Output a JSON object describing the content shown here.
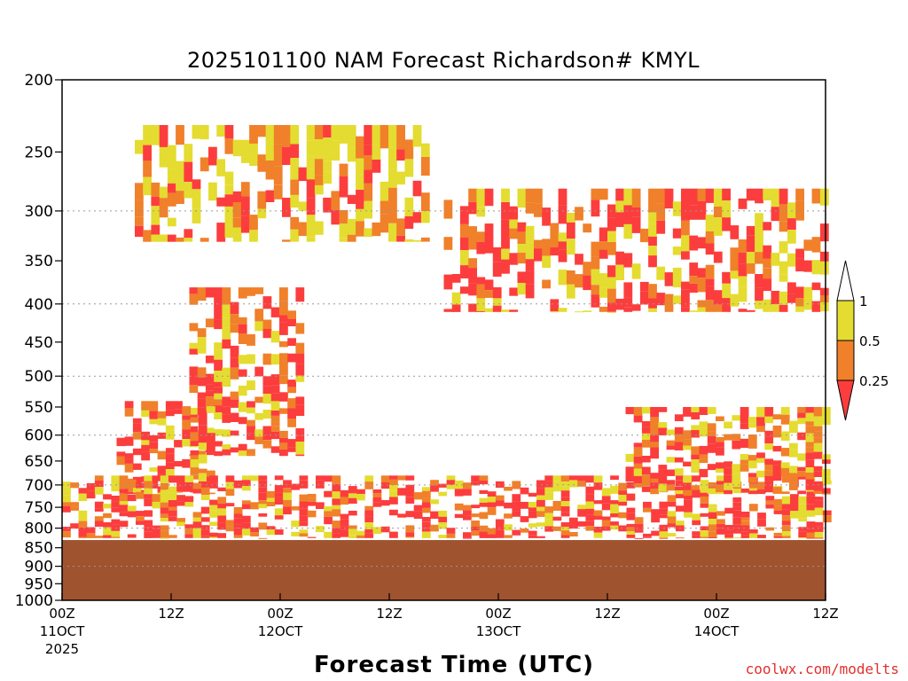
{
  "chart_data": {
    "type": "heatmap",
    "title": "2025101100 NAM Forecast Richardson# KMYL",
    "xlabel": "Forecast Time (UTC)",
    "ylabel": "",
    "y_scale": "log",
    "ylim": [
      1000,
      200
    ],
    "y_ticks": [
      200,
      250,
      300,
      350,
      400,
      450,
      500,
      550,
      600,
      650,
      700,
      750,
      800,
      850,
      900,
      950,
      1000
    ],
    "gridlines_hPa": [
      300,
      400,
      500,
      600,
      700,
      800,
      900,
      1000
    ],
    "x_ticks": [
      {
        "hour": 0,
        "label": "00Z",
        "date": "11OCT",
        "year": "2025"
      },
      {
        "hour": 12,
        "label": "12Z",
        "date": "",
        "year": ""
      },
      {
        "hour": 24,
        "label": "00Z",
        "date": "12OCT",
        "year": ""
      },
      {
        "hour": 36,
        "label": "12Z",
        "date": "",
        "year": ""
      },
      {
        "hour": 48,
        "label": "00Z",
        "date": "13OCT",
        "year": ""
      },
      {
        "hour": 60,
        "label": "12Z",
        "date": "",
        "year": ""
      },
      {
        "hour": 72,
        "label": "00Z",
        "date": "14OCT",
        "year": ""
      },
      {
        "hour": 84,
        "label": "12Z",
        "date": "",
        "year": ""
      }
    ],
    "xlim_hours": [
      0,
      84
    ],
    "ground_top_hPa": 830,
    "legend": {
      "placement": "right",
      "labels": [
        "1",
        "0.5",
        "0.25"
      ],
      "colors": {
        "lt_0_25": "#fc3d3d",
        "0_25_to_0_5": "#f0802a",
        "0_5_to_1": "#e4dc30",
        "gt_1": "#ffffff",
        "ground": "#9f532f"
      }
    },
    "bands": [
      {
        "desc": "upper jet-level low Ri",
        "start_hour": 42,
        "end_hour": 84,
        "top_hPa": 280,
        "bottom_hPa": 410,
        "class_weights": [
          0.5,
          0.25,
          0.25
        ]
      },
      {
        "desc": "mid-level frontal layer",
        "start_hour": 14,
        "end_hour": 26,
        "top_hPa": 380,
        "bottom_hPa": 640,
        "class_weights": [
          0.45,
          0.3,
          0.25
        ]
      },
      {
        "desc": "early mid-level layer",
        "start_hour": 6,
        "end_hour": 16,
        "top_hPa": 540,
        "bottom_hPa": 720,
        "class_weights": [
          0.55,
          0.25,
          0.2
        ]
      },
      {
        "desc": "boundary layer",
        "start_hour": 0,
        "end_hour": 84,
        "top_hPa": 680,
        "bottom_hPa": 825,
        "class_weights": [
          0.55,
          0.25,
          0.2
        ]
      },
      {
        "desc": "late mid-level layer",
        "start_hour": 62,
        "end_hour": 84,
        "top_hPa": 550,
        "bottom_hPa": 720,
        "class_weights": [
          0.5,
          0.25,
          0.25
        ]
      },
      {
        "desc": "scattered upper patches",
        "start_hour": 8,
        "end_hour": 40,
        "top_hPa": 230,
        "bottom_hPa": 330,
        "class_weights": [
          0.2,
          0.3,
          0.5
        ]
      }
    ]
  },
  "credit": "coolwx.com/modelts"
}
